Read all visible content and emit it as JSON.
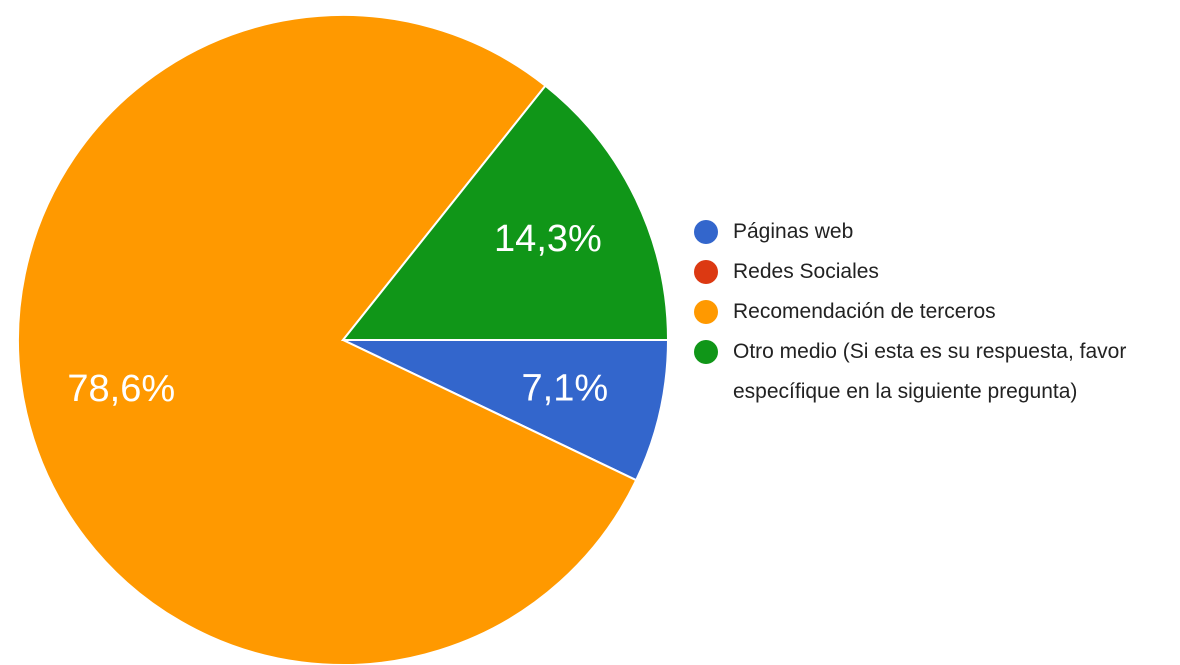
{
  "chart_data": {
    "type": "pie",
    "categories": [
      "Páginas web",
      "Redes Sociales",
      "Recomendación de terceros",
      "Otro medio (Si esta es su respuesta, favor específique en la siguiente pregunta)"
    ],
    "values": [
      7.1,
      0,
      78.6,
      14.3
    ],
    "value_labels": [
      "7,1%",
      null,
      "78,6%",
      "14,3%"
    ],
    "colors": [
      "#3366cc",
      "#dc3912",
      "#ff9900",
      "#109618"
    ],
    "legend": "right"
  }
}
